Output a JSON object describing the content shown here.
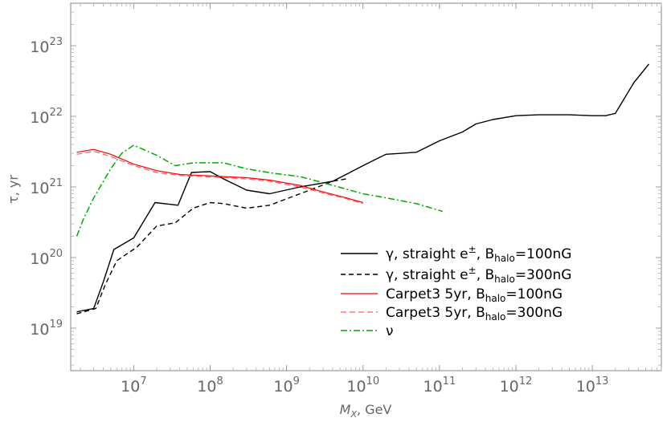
{
  "chart_data": {
    "type": "line",
    "xscale": "log",
    "yscale": "log",
    "xlim": [
      1500000.0,
      80000000000000.0
    ],
    "ylim": [
      2.5e+18,
      4e+23
    ],
    "x_ticks": [
      {
        "value": 10000000.0,
        "base": "10",
        "exp": "7"
      },
      {
        "value": 100000000.0,
        "base": "10",
        "exp": "8"
      },
      {
        "value": 1000000000.0,
        "base": "10",
        "exp": "9"
      },
      {
        "value": 10000000000.0,
        "base": "10",
        "exp": "10"
      },
      {
        "value": 100000000000.0,
        "base": "10",
        "exp": "11"
      },
      {
        "value": 1000000000000.0,
        "base": "10",
        "exp": "12"
      },
      {
        "value": 10000000000000.0,
        "base": "10",
        "exp": "13"
      }
    ],
    "y_ticks": [
      {
        "value": 1e+19,
        "base": "10",
        "exp": "19"
      },
      {
        "value": 1e+20,
        "base": "10",
        "exp": "20"
      },
      {
        "value": 1e+21,
        "base": "10",
        "exp": "21"
      },
      {
        "value": 1e+22,
        "base": "10",
        "exp": "22"
      },
      {
        "value": 1e+23,
        "base": "10",
        "exp": "23"
      }
    ],
    "xlabel": {
      "main": "M",
      "sub": "X",
      "rest": ", GeV"
    },
    "ylabel": "τ, yr",
    "legend_position": "bottom-right",
    "series": [
      {
        "legend": {
          "main": "γ, straight e",
          "sup": "±",
          "mid": ", B",
          "sub": "halo",
          "tail": "=100nG"
        },
        "color": "#000000",
        "dash": "",
        "width": 1.4,
        "x": [
          1800000.0,
          3000000.0,
          4000000.0,
          5500000.0,
          10000000.0,
          19000000.0,
          38000000.0,
          57000000.0,
          100000000.0,
          150000000.0,
          300000000.0,
          600000000.0,
          1500000000.0,
          4000000000.0,
          6000000000.0,
          10000000000.0,
          14000000000.0,
          20000000000.0,
          50000000000.0,
          100000000000.0,
          200000000000.0,
          300000000000.0,
          500000000000.0,
          1000000000000.0,
          2000000000000.0,
          5000000000000.0,
          10000000000000.0,
          15000000000000.0,
          20000000000000.0,
          35000000000000.0,
          55000000000000.0
        ],
        "y": [
          1.7e+19,
          1.9e+19,
          4.5e+19,
          1.3e+20,
          1.9e+20,
          6e+20,
          5.5e+20,
          1.6e+21,
          1.65e+21,
          1.3e+21,
          9e+20,
          8e+20,
          1e+21,
          1.2e+21,
          1.5e+21,
          2e+21,
          2.4e+21,
          2.9e+21,
          3.1e+21,
          4.5e+21,
          6e+21,
          7.8e+21,
          9e+21,
          1.02e+22,
          1.05e+22,
          1.05e+22,
          1.02e+22,
          1.02e+22,
          1.1e+22,
          3e+22,
          5.5e+22
        ]
      },
      {
        "legend": {
          "main": "γ, straight e",
          "sup": "±",
          "mid": ", B",
          "sub": "halo",
          "tail": "=300nG"
        },
        "color": "#000000",
        "dash": "6,4",
        "width": 1.4,
        "x": [
          1800000.0,
          3200000.0,
          4200000.0,
          6000000.0,
          11000000.0,
          20000000.0,
          35000000.0,
          60000000.0,
          100000000.0,
          150000000.0,
          300000000.0,
          600000000.0,
          1500000000.0,
          4000000000.0,
          6000000000.0
        ],
        "y": [
          1.6e+19,
          1.9e+19,
          4e+19,
          9e+19,
          1.4e+20,
          2.8e+20,
          3.1e+20,
          5e+20,
          6e+20,
          5.8e+20,
          5e+20,
          5.5e+20,
          8e+20,
          1.2e+21,
          1.3e+21
        ]
      },
      {
        "legend": {
          "main": "Carpet3 5yr,",
          "mid": "    B",
          "sub": "halo",
          "tail": "=100nG"
        },
        "color": "#ff0000",
        "dash": "",
        "width": 1.2,
        "x": [
          1800000.0,
          3000000.0,
          5000000.0,
          10000000.0,
          20000000.0,
          40000000.0,
          80000000.0,
          150000000.0,
          300000000.0,
          600000000.0,
          1500000000.0,
          3000000000.0,
          6000000000.0,
          10000000000.0
        ],
        "y": [
          3.1e+21,
          3.4e+21,
          2.9e+21,
          2.1e+21,
          1.7e+21,
          1.5e+21,
          1.45e+21,
          1.4e+21,
          1.35e+21,
          1.25e+21,
          1.05e+21,
          8.5e+20,
          7e+20,
          6e+20
        ]
      },
      {
        "legend": {
          "main": "Carpet3 5yr,",
          "mid": "    B",
          "sub": "halo",
          "tail": "=300nG"
        },
        "color": "#ff5a5a",
        "dash": "7,4",
        "width": 1.2,
        "x": [
          1800000.0,
          3000000.0,
          5000000.0,
          10000000.0,
          20000000.0,
          40000000.0,
          80000000.0,
          150000000.0,
          300000000.0,
          600000000.0,
          1500000000.0,
          3000000000.0,
          6000000000.0,
          10000000000.0
        ],
        "y": [
          2.9e+21,
          3.2e+21,
          2.7e+21,
          2e+21,
          1.6e+21,
          1.45e+21,
          1.4e+21,
          1.35e+21,
          1.3e+21,
          1.2e+21,
          1e+21,
          8.2e+20,
          6.8e+20,
          5.8e+20
        ]
      },
      {
        "legend": {
          "main": "ν"
        },
        "color": "#00aa00",
        "dash": "8,3,2,3",
        "width": 1.5,
        "x": [
          1800000.0,
          2200000.0,
          3000000.0,
          5000000.0,
          7000000.0,
          10000000.0,
          20000000.0,
          35000000.0,
          60000000.0,
          150000000.0,
          300000000.0,
          700000000.0,
          1500000000.0,
          3000000000.0,
          10000000000.0,
          20000000000.0,
          50000000000.0,
          110000000000.0
        ],
        "y": [
          2e+20,
          3.5e+20,
          7e+20,
          1.8e+21,
          3e+21,
          3.9e+21,
          2.8e+21,
          2e+21,
          2.2e+21,
          2.2e+21,
          1.8e+21,
          1.55e+21,
          1.4e+21,
          1.15e+21,
          8e+20,
          7e+20,
          5.8e+20,
          4.5e+20
        ]
      }
    ]
  }
}
